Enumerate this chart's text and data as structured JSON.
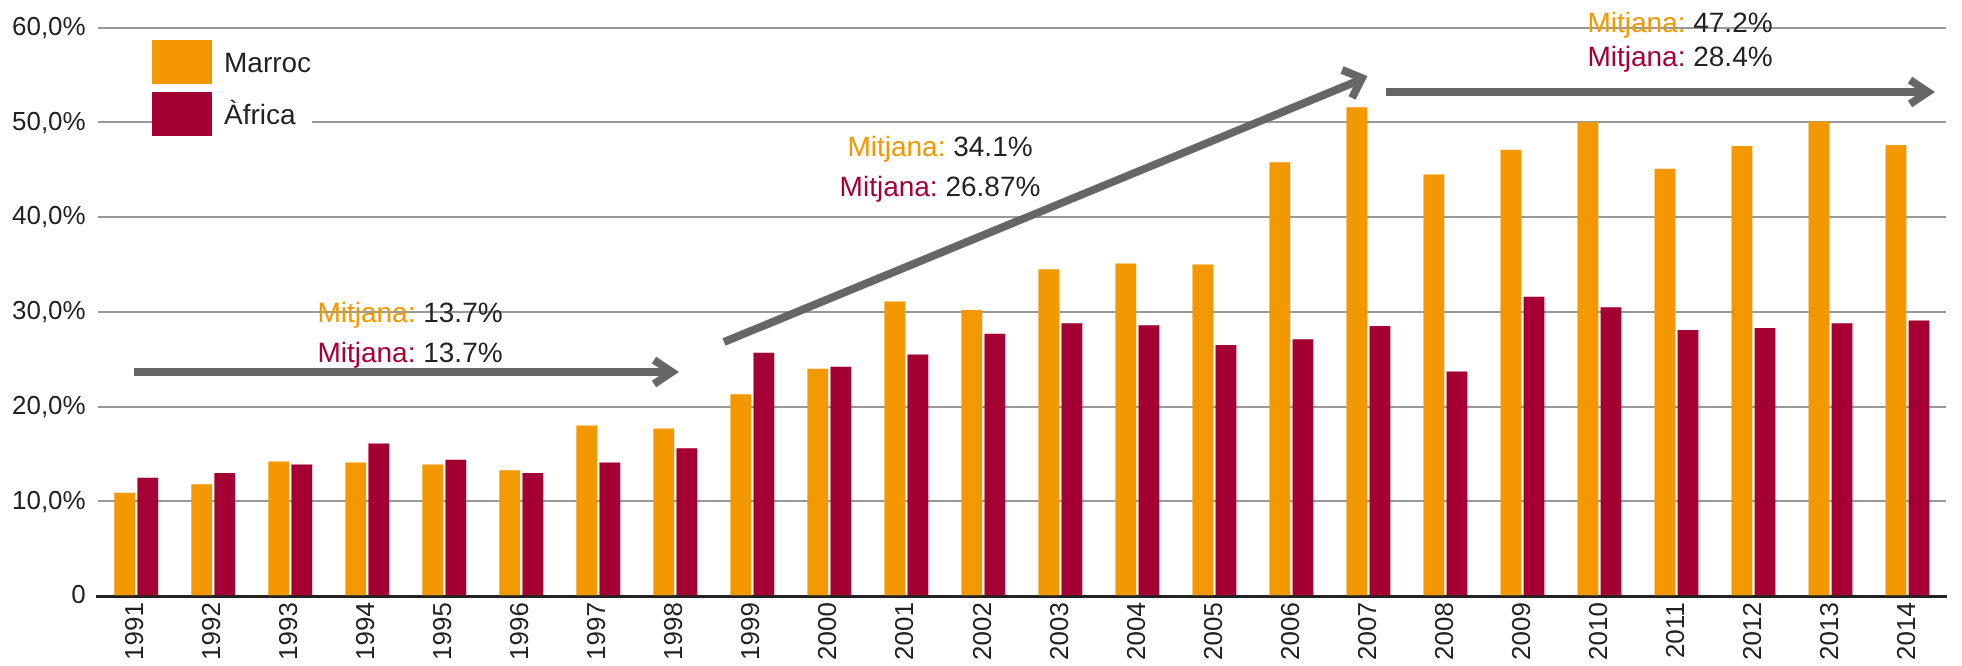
{
  "chart_data": {
    "type": "bar",
    "categories": [
      "1991",
      "1992",
      "1993",
      "1994",
      "1995",
      "1996",
      "1997",
      "1998",
      "1999",
      "2000",
      "2001",
      "2002",
      "2003",
      "2004",
      "2005",
      "2006",
      "2007",
      "2008",
      "2009",
      "2010",
      "2011",
      "2012",
      "2013",
      "2014"
    ],
    "series": [
      {
        "name": "Marroc",
        "color": "#f39800",
        "values": [
          10.9,
          11.8,
          14.2,
          14.1,
          13.9,
          13.3,
          18.0,
          17.7,
          21.3,
          24.0,
          31.1,
          30.2,
          34.5,
          35.1,
          35.0,
          45.8,
          51.6,
          44.5,
          47.1,
          50.0,
          45.1,
          47.5,
          50.1,
          47.6
        ]
      },
      {
        "name": "Àfrica",
        "color": "#a50034",
        "values": [
          12.5,
          13.0,
          13.9,
          16.1,
          14.4,
          13.0,
          14.1,
          15.6,
          25.7,
          24.2,
          25.5,
          27.7,
          28.8,
          28.6,
          26.5,
          27.1,
          28.5,
          23.7,
          31.6,
          30.5,
          28.1,
          28.3,
          28.8,
          29.1
        ]
      }
    ],
    "ylim": [
      0,
      60
    ],
    "yticks": [
      0,
      {
        "value": 10,
        "label": "10,0%"
      },
      {
        "value": 20,
        "label": "20,0%"
      },
      {
        "value": 30,
        "label": "30,0%"
      },
      {
        "value": 40,
        "label": "40,0%"
      },
      {
        "value": 50,
        "label": "50,0%"
      },
      {
        "value": 60,
        "label": "60,0%"
      }
    ],
    "grid": "y",
    "legend": "top left",
    "annotations": [
      "Mitjana: 13.7%",
      "Mitjana: 13.7%",
      "Mitjana: 34.1%",
      "Mitjana: 26.87%",
      "Mitjana: 47.2%",
      "Mitjana: 28.4%"
    ]
  }
}
